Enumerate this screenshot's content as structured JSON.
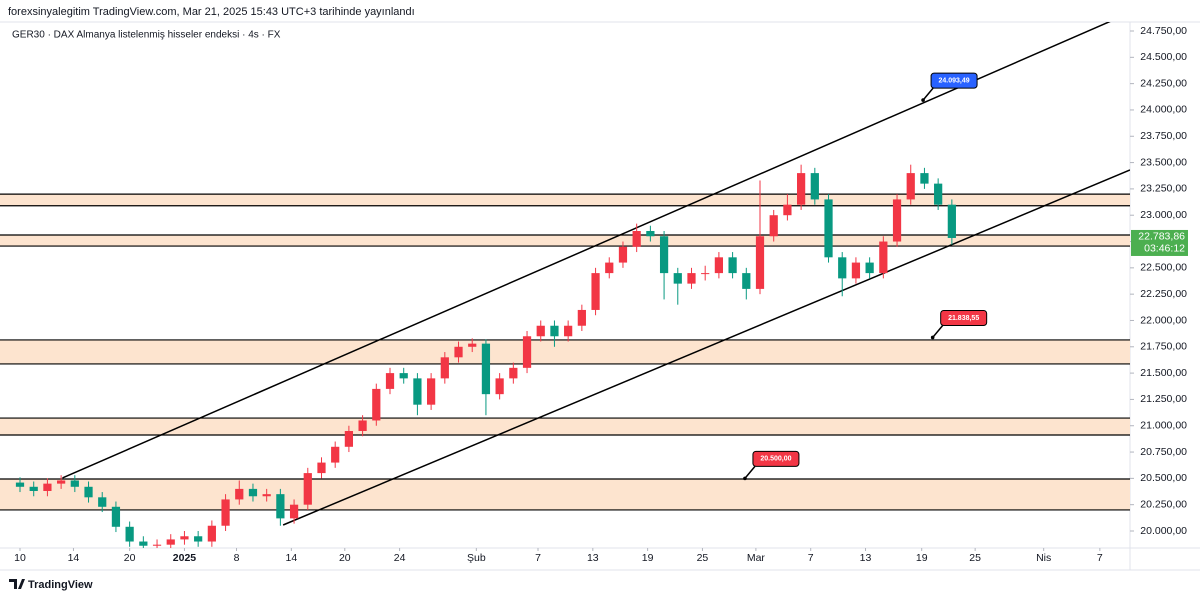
{
  "chart_data": {
    "type": "candlestick",
    "header": "forexsinyalegitim TradingView.com, Mar 21, 2025 15:43 UTC+3 tarihinde yayınlandı",
    "symbol": "GER30 · DAX Almanya listelenmiş hisseler endeksi · 4s · FX",
    "brand": "TradingView",
    "up_color": "#f23645",
    "down_color": "#089981",
    "x": [
      0,
      1,
      2,
      3,
      4,
      5,
      6,
      7,
      8,
      9,
      10,
      11,
      12,
      13,
      14,
      15,
      16,
      17,
      18,
      19,
      20,
      21,
      22,
      23,
      24,
      25,
      26,
      27,
      28,
      29,
      30,
      31,
      32,
      33,
      34,
      35,
      36,
      37,
      38,
      39,
      40,
      41,
      42,
      43,
      44,
      45,
      46,
      47,
      48,
      49,
      50,
      51,
      52,
      53,
      54,
      55,
      56,
      57,
      58,
      59,
      60,
      61,
      62,
      63,
      64,
      65,
      66,
      67,
      68
    ],
    "open": [
      20460,
      20420,
      20380,
      20450,
      20480,
      20420,
      20320,
      20230,
      20040,
      19900,
      19860,
      19870,
      19920,
      19950,
      19900,
      20050,
      20300,
      20400,
      20330,
      20350,
      20120,
      20250,
      20550,
      20650,
      20800,
      20950,
      21050,
      21350,
      21500,
      21450,
      21200,
      21450,
      21650,
      21750,
      21780,
      21300,
      21450,
      21550,
      21850,
      21950,
      21850,
      21950,
      22100,
      22450,
      22550,
      22700,
      22850,
      22800,
      22450,
      22350,
      22450,
      22450,
      22600,
      22450,
      22300,
      22800,
      23000,
      23100,
      23400,
      23150,
      22600,
      22400,
      22550,
      22450,
      22750,
      23150,
      23400,
      23300,
      23100
    ],
    "high": [
      20510,
      20470,
      20500,
      20530,
      20530,
      20470,
      20370,
      20280,
      20090,
      19950,
      19920,
      19970,
      20000,
      20000,
      20100,
      20350,
      20480,
      20450,
      20400,
      20400,
      20300,
      20600,
      20700,
      20850,
      21000,
      21100,
      21400,
      21550,
      21550,
      21500,
      21500,
      21700,
      21800,
      21830,
      21820,
      21500,
      21600,
      21900,
      22000,
      22000,
      22000,
      22150,
      22500,
      22600,
      22750,
      22920,
      22900,
      22850,
      22500,
      22500,
      22520,
      22650,
      22650,
      22500,
      23330,
      23050,
      23200,
      23480,
      23450,
      23200,
      22650,
      22600,
      22600,
      22800,
      23200,
      23480,
      23450,
      23350,
      23150
    ],
    "low": [
      20370,
      20330,
      20330,
      20400,
      20370,
      20270,
      20180,
      19990,
      19850,
      19810,
      19810,
      19820,
      19870,
      19850,
      19850,
      20000,
      20250,
      20280,
      20280,
      20050,
      20070,
      20200,
      20500,
      20600,
      20750,
      20900,
      21000,
      21300,
      21400,
      21100,
      21150,
      21400,
      21600,
      21700,
      21100,
      21250,
      21400,
      21500,
      21800,
      21750,
      21800,
      21900,
      22050,
      22400,
      22500,
      22650,
      22750,
      22200,
      22150,
      22300,
      22380,
      22400,
      22400,
      22200,
      22250,
      22750,
      22950,
      23050,
      23100,
      22550,
      22230,
      22350,
      22400,
      22400,
      22700,
      23100,
      23250,
      23050,
      22720
    ],
    "close": [
      20420,
      20380,
      20450,
      20480,
      20420,
      20320,
      20230,
      20040,
      19900,
      19860,
      19870,
      19920,
      19950,
      19900,
      20050,
      20300,
      20400,
      20330,
      20350,
      20120,
      20250,
      20550,
      20650,
      20800,
      20950,
      21050,
      21350,
      21500,
      21450,
      21200,
      21450,
      21650,
      21750,
      21780,
      21300,
      21450,
      21550,
      21850,
      21950,
      21850,
      21950,
      22100,
      22450,
      22550,
      22700,
      22850,
      22800,
      22450,
      22350,
      22450,
      22450,
      22600,
      22450,
      22300,
      22800,
      23000,
      23100,
      23400,
      23150,
      22600,
      22400,
      22550,
      22450,
      22750,
      23150,
      23400,
      23300,
      23100,
      22783.86
    ],
    "xlim": [
      -1.46,
      81.0
    ],
    "xticks": [
      {
        "value": 0,
        "label": "10"
      },
      {
        "value": 3.9,
        "label": "14"
      },
      {
        "value": 8,
        "label": "20"
      },
      {
        "value": 12,
        "label": "2025"
      },
      {
        "value": 15.8,
        "label": "8"
      },
      {
        "value": 19.8,
        "label": "14"
      },
      {
        "value": 23.7,
        "label": "20"
      },
      {
        "value": 27.7,
        "label": "24"
      },
      {
        "value": 33.3,
        "label": "Şub"
      },
      {
        "value": 37.8,
        "label": "7"
      },
      {
        "value": 41.8,
        "label": "13"
      },
      {
        "value": 45.8,
        "label": "19"
      },
      {
        "value": 49.8,
        "label": "25"
      },
      {
        "value": 53.7,
        "label": "Mar"
      },
      {
        "value": 57.7,
        "label": "7"
      },
      {
        "value": 61.7,
        "label": "13"
      },
      {
        "value": 65.8,
        "label": "19"
      },
      {
        "value": 69.7,
        "label": "25"
      },
      {
        "value": 74.7,
        "label": "Nis"
      },
      {
        "value": 78.8,
        "label": "7"
      }
    ],
    "ylim": [
      19838.5,
      24835.5
    ],
    "yticks": [
      {
        "value": 20000,
        "label": "20.000,00"
      },
      {
        "value": 20250,
        "label": "20.250,00"
      },
      {
        "value": 20500,
        "label": "20.500,00"
      },
      {
        "value": 20750,
        "label": "20.750,00"
      },
      {
        "value": 21000,
        "label": "21.000,00"
      },
      {
        "value": 21250,
        "label": "21.250,00"
      },
      {
        "value": 21500,
        "label": "21.500,00"
      },
      {
        "value": 21750,
        "label": "21.750,00"
      },
      {
        "value": 22000,
        "label": "22.000,00"
      },
      {
        "value": 22250,
        "label": "22.250,00"
      },
      {
        "value": 22500,
        "label": "22.500,00"
      },
      {
        "value": 22750,
        "label": "22.750,00"
      },
      {
        "value": 23000,
        "label": "23.000,00"
      },
      {
        "value": 23250,
        "label": "23.250,00"
      },
      {
        "value": 23500,
        "label": "23.500,00"
      },
      {
        "value": 23750,
        "label": "23.750,00"
      },
      {
        "value": 24000,
        "label": "24.000,00"
      },
      {
        "value": 24250,
        "label": "24.250,00"
      },
      {
        "value": 24500,
        "label": "24.500,00"
      },
      {
        "value": 24750,
        "label": "24.750,00"
      }
    ],
    "grid": false,
    "zone_color": "#fde4cf",
    "zones": [
      {
        "top": 23200,
        "bottom": 23090
      },
      {
        "top": 22812,
        "bottom": 22707
      },
      {
        "top": 21815,
        "bottom": 21587
      },
      {
        "top": 21073,
        "bottom": 20912
      },
      {
        "top": 20494,
        "bottom": 20200
      }
    ],
    "trendlines": [
      {
        "x": [
          3.1,
          79.8
        ],
        "y": [
          20504,
          24855
        ]
      },
      {
        "x": [
          19.2,
          81.0
        ],
        "y": [
          20057,
          23430
        ]
      }
    ],
    "annotations": [
      {
        "text": "24.093,49",
        "x": 65.9,
        "y": 24093.49,
        "color": "#2962ff"
      },
      {
        "text": "21.838,55",
        "x": 66.6,
        "y": 21838.55,
        "color": "#f23645"
      },
      {
        "text": "20.500,00",
        "x": 52.9,
        "y": 20500,
        "color": "#f23645"
      }
    ],
    "last_price": {
      "value": 22783.86,
      "label": "22.783,86",
      "countdown": "03:46:12",
      "color": "#4caf50"
    }
  }
}
